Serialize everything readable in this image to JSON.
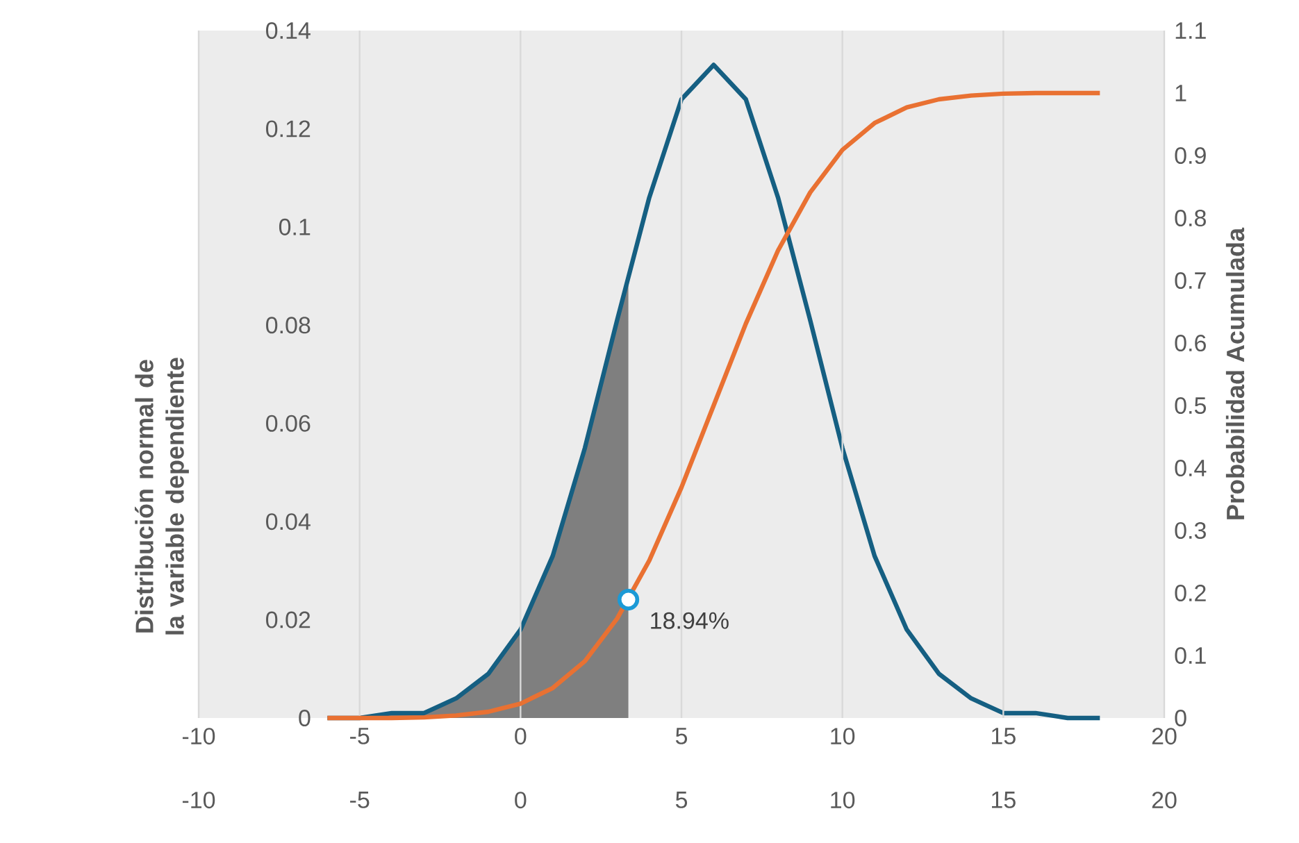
{
  "chart_data": {
    "type": "line",
    "xlabel": null,
    "ylabel": "Distribución normal de la variable dependiente",
    "y2label": "Probabilidad Acumulada",
    "xlim": [
      -10,
      20
    ],
    "xticks": [
      -10,
      -5,
      0,
      5,
      10,
      15,
      20
    ],
    "x2lim": [
      -10,
      20
    ],
    "x2ticks": [
      -10,
      -5,
      0,
      5,
      10,
      15,
      20
    ],
    "ylim": [
      0,
      0.14
    ],
    "yticks": [
      0,
      0.02,
      0.04,
      0.06,
      0.08,
      0.1,
      0.12,
      0.14
    ],
    "y2lim": [
      0,
      1.1
    ],
    "y2ticks": [
      0,
      0.1,
      0.2,
      0.3,
      0.4,
      0.5,
      0.6,
      0.7,
      0.8,
      0.9,
      1,
      1.1
    ],
    "grid": "x",
    "bands": [
      {
        "axis": "x",
        "from": -10,
        "to": 20,
        "color": "#ececec"
      }
    ],
    "series": [
      {
        "type": "area",
        "color": "#7f7f7f",
        "x": [
          -6,
          -5,
          -4,
          -3,
          -2,
          -1,
          0,
          1,
          2,
          3,
          3.35
        ],
        "values": [
          0.0,
          0.0,
          0.001,
          0.001,
          0.004,
          0.009,
          0.018,
          0.033,
          0.055,
          0.081,
          0.09
        ]
      },
      {
        "color": "#155f82",
        "x": [
          -6,
          -5,
          -4,
          -3,
          -2,
          -1,
          0,
          1,
          2,
          3,
          4,
          5,
          6,
          7,
          8,
          9,
          10,
          11,
          12,
          13,
          14,
          15,
          16,
          17,
          18
        ],
        "values": [
          0.0,
          0.0,
          0.001,
          0.001,
          0.004,
          0.009,
          0.018,
          0.033,
          0.055,
          0.081,
          0.106,
          0.126,
          0.133,
          0.126,
          0.106,
          0.081,
          0.055,
          0.033,
          0.018,
          0.009,
          0.004,
          0.001,
          0.001,
          0.0,
          0.0
        ]
      },
      {
        "axis": "y2",
        "color": "#e97132",
        "x": [
          -6,
          -5,
          -4,
          -3,
          -2,
          -1,
          0,
          1,
          2,
          3,
          4,
          5,
          6,
          7,
          8,
          9,
          10,
          11,
          12,
          13,
          14,
          15,
          16,
          17,
          18
        ],
        "values": [
          0,
          0,
          0,
          0.001,
          0.004,
          0.01,
          0.023,
          0.048,
          0.091,
          0.159,
          0.252,
          0.369,
          0.5,
          0.631,
          0.748,
          0.841,
          0.909,
          0.952,
          0.977,
          0.99,
          0.996,
          0.999,
          1,
          1,
          1
        ]
      },
      {
        "type": "scatter",
        "axis": "y2",
        "color": "#1c9ad6",
        "x": [
          3.35
        ],
        "values": [
          0.1894
        ],
        "value_labels": [
          "18.94%"
        ]
      }
    ]
  }
}
